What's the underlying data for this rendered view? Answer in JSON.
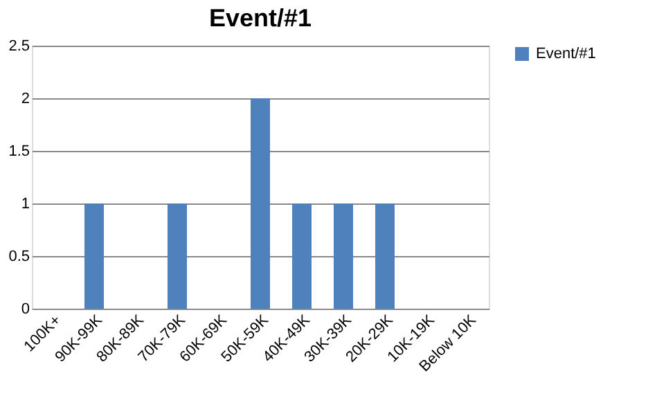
{
  "chart_data": {
    "type": "bar",
    "title": "Event/#1",
    "categories": [
      "100K+",
      "90K-99K",
      "80K-89K",
      "70K-79K",
      "60K-69K",
      "50K-59K",
      "40K-49K",
      "30K-39K",
      "20K-29K",
      "10K-19K",
      "Below 10K"
    ],
    "series": [
      {
        "name": "Event/#1",
        "color": "#4f81bd",
        "values": [
          0,
          1,
          0,
          1,
          0,
          2,
          1,
          1,
          1,
          0,
          0
        ]
      }
    ],
    "ylim": [
      0,
      2.5
    ],
    "yticks": [
      0,
      0.5,
      1,
      1.5,
      2,
      2.5
    ],
    "grid": "y",
    "legend": "right"
  }
}
